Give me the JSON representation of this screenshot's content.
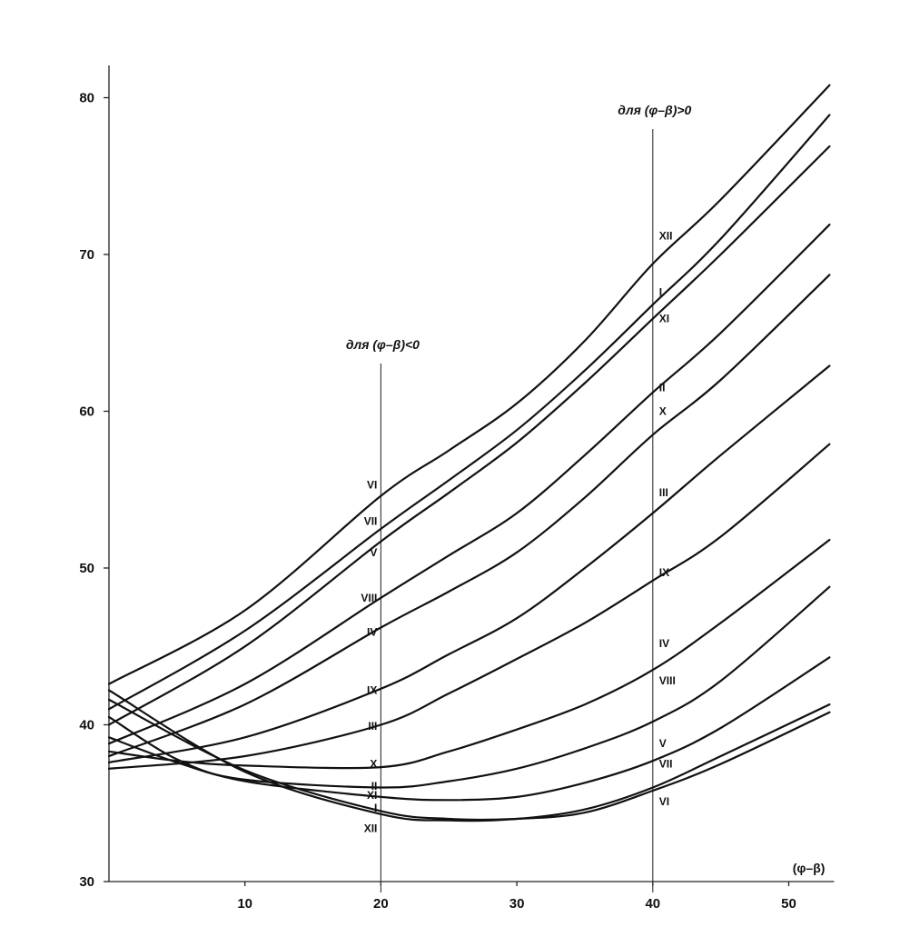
{
  "chart_data": {
    "type": "line",
    "xlabel": "(φ–β)",
    "ylabel": "",
    "xlim": [
      0,
      53
    ],
    "ylim": [
      30,
      82
    ],
    "x_ticks": [
      10,
      20,
      30,
      40,
      50
    ],
    "y_ticks": [
      30,
      40,
      50,
      60,
      70,
      80
    ],
    "grid": false,
    "legend": "none",
    "reference_lines": [
      {
        "x": 20,
        "label": "для (φ–β)<0"
      },
      {
        "x": 40,
        "label": "для (φ–β)>0"
      }
    ],
    "series": [
      {
        "name": "XII",
        "x": [
          0,
          10,
          20,
          25,
          30,
          35,
          40,
          45,
          53
        ],
        "values": [
          42.2,
          37.0,
          34.3,
          33.9,
          34.0,
          34.6,
          36.0,
          38.0,
          41.3
        ]
      },
      {
        "name": "I",
        "x": [
          0,
          10,
          20,
          25,
          30,
          35,
          40,
          45,
          53
        ],
        "values": [
          41.6,
          37.1,
          34.5,
          34.0,
          34.0,
          34.4,
          35.8,
          37.5,
          40.8
        ]
      },
      {
        "name": "XI",
        "x": [
          0,
          5,
          10,
          20,
          25,
          30,
          35,
          40,
          45,
          53
        ],
        "values": [
          40.5,
          37.8,
          36.4,
          35.4,
          35.2,
          35.4,
          36.3,
          37.7,
          39.8,
          44.3
        ]
      },
      {
        "name": "II",
        "x": [
          0,
          5,
          10,
          20,
          25,
          30,
          35,
          40,
          45,
          53
        ],
        "values": [
          39.2,
          37.6,
          36.5,
          36.0,
          36.4,
          37.2,
          38.5,
          40.2,
          42.8,
          48.8
        ]
      },
      {
        "name": "X",
        "x": [
          0,
          5,
          10,
          20,
          25,
          30,
          35,
          40,
          45,
          53
        ],
        "values": [
          38.3,
          37.7,
          37.4,
          37.3,
          38.3,
          39.7,
          41.3,
          43.5,
          46.5,
          51.8
        ]
      },
      {
        "name": "III",
        "x": [
          0,
          10,
          20,
          25,
          30,
          35,
          40,
          45,
          53
        ],
        "values": [
          37.2,
          38.0,
          40.0,
          42.0,
          44.2,
          46.5,
          49.2,
          52.0,
          57.9
        ]
      },
      {
        "name": "IX",
        "x": [
          0,
          10,
          20,
          25,
          30,
          35,
          40,
          45,
          53
        ],
        "values": [
          37.6,
          39.2,
          42.3,
          44.5,
          46.8,
          50.0,
          53.5,
          57.2,
          62.9
        ]
      },
      {
        "name": "IV",
        "x": [
          0,
          10,
          20,
          25,
          30,
          35,
          40,
          45,
          53
        ],
        "values": [
          38.0,
          41.3,
          46.2,
          48.5,
          51.0,
          54.5,
          58.5,
          62.0,
          68.7
        ]
      },
      {
        "name": "VIII",
        "x": [
          0,
          10,
          20,
          25,
          30,
          35,
          40,
          45,
          53
        ],
        "values": [
          38.8,
          42.6,
          48.1,
          50.8,
          53.5,
          57.2,
          61.2,
          65.0,
          71.9
        ]
      },
      {
        "name": "V",
        "x": [
          0,
          10,
          20,
          25,
          30,
          35,
          40,
          45,
          53
        ],
        "values": [
          40.0,
          45.0,
          51.7,
          54.8,
          58.0,
          61.8,
          65.9,
          70.0,
          76.9
        ]
      },
      {
        "name": "VII",
        "x": [
          0,
          10,
          20,
          25,
          30,
          35,
          40,
          45,
          53
        ],
        "values": [
          41.0,
          46.0,
          52.5,
          55.6,
          58.8,
          62.6,
          66.8,
          71.0,
          78.9
        ]
      },
      {
        "name": "VI",
        "x": [
          0,
          10,
          20,
          25,
          30,
          35,
          40,
          45,
          53
        ],
        "values": [
          42.6,
          47.3,
          54.6,
          57.5,
          60.5,
          64.5,
          69.4,
          73.5,
          80.8
        ]
      }
    ],
    "curve_labels_at_x20": [
      {
        "text": "VI",
        "value": 55.3
      },
      {
        "text": "VII",
        "value": 53.0
      },
      {
        "text": "V",
        "value": 51.0
      },
      {
        "text": "VIII",
        "value": 48.1
      },
      {
        "text": "IV",
        "value": 45.9
      },
      {
        "text": "IX",
        "value": 42.2
      },
      {
        "text": "III",
        "value": 39.9
      },
      {
        "text": "X",
        "value": 37.5
      },
      {
        "text": "II",
        "value": 36.1
      },
      {
        "text": "XI",
        "value": 35.5
      },
      {
        "text": "I",
        "value": 34.7
      },
      {
        "text": "XII",
        "value": 33.4
      }
    ],
    "curve_labels_at_x40": [
      {
        "text": "XII",
        "value": 71.2
      },
      {
        "text": "I",
        "value": 67.6
      },
      {
        "text": "XI",
        "value": 65.9
      },
      {
        "text": "II",
        "value": 61.5
      },
      {
        "text": "X",
        "value": 60.0
      },
      {
        "text": "III",
        "value": 54.8
      },
      {
        "text": "IX",
        "value": 49.7
      },
      {
        "text": "IV",
        "value": 45.2
      },
      {
        "text": "VIII",
        "value": 42.8
      },
      {
        "text": "V",
        "value": 38.8
      },
      {
        "text": "VII",
        "value": 37.5
      },
      {
        "text": "VI",
        "value": 35.1
      }
    ]
  }
}
